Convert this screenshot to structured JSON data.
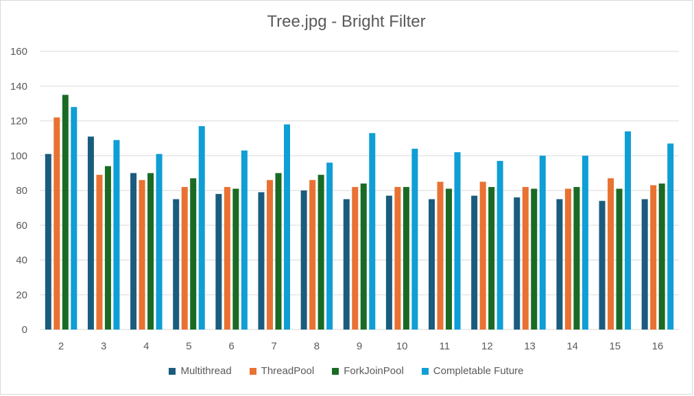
{
  "chart_data": {
    "type": "bar",
    "title": "Tree.jpg - Bright Filter",
    "xlabel": "",
    "ylabel": "",
    "categories": [
      "2",
      "3",
      "4",
      "5",
      "6",
      "7",
      "8",
      "9",
      "10",
      "11",
      "12",
      "13",
      "14",
      "15",
      "16"
    ],
    "ylim": [
      0,
      160
    ],
    "yticks": [
      "0",
      "20",
      "40",
      "60",
      "80",
      "100",
      "120",
      "140",
      "160"
    ],
    "grid": true,
    "legend_position": "bottom",
    "series": [
      {
        "name": "Multithread",
        "color": "#1b5c7e",
        "values": [
          101,
          111,
          90,
          75,
          78,
          79,
          80,
          75,
          77,
          75,
          77,
          76,
          75,
          74,
          75
        ]
      },
      {
        "name": "ThreadPool",
        "color": "#e97132",
        "values": [
          122,
          89,
          86,
          82,
          82,
          86,
          86,
          82,
          82,
          85,
          85,
          82,
          81,
          87,
          83
        ]
      },
      {
        "name": "ForkJoinPool",
        "color": "#196b24",
        "values": [
          135,
          94,
          90,
          87,
          81,
          90,
          89,
          84,
          82,
          81,
          82,
          81,
          82,
          81,
          84
        ]
      },
      {
        "name": "Completable Future",
        "color": "#0f9ed5",
        "values": [
          128,
          109,
          101,
          117,
          103,
          118,
          96,
          113,
          104,
          102,
          97,
          100,
          100,
          114,
          107
        ]
      }
    ]
  }
}
